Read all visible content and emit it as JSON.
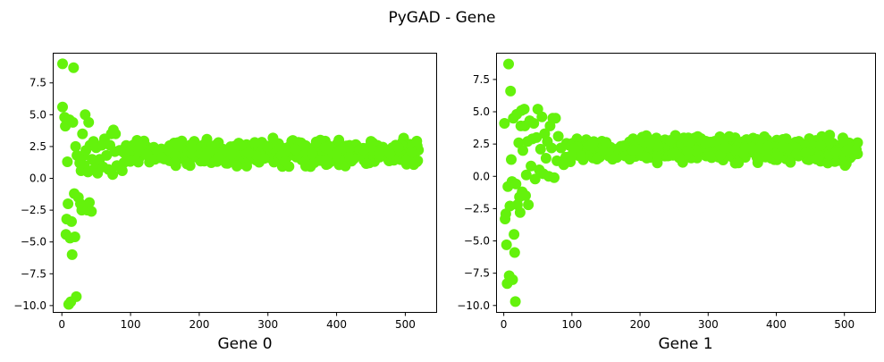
{
  "figure": {
    "title": "PyGAD - Gene",
    "marker_color": "#64F20C"
  },
  "chart_data": [
    {
      "type": "scatter",
      "title": "",
      "xlabel": "Gene 0",
      "ylabel": "",
      "xlim": [
        -12,
        545
      ],
      "ylim": [
        -10.5,
        9.8
      ],
      "x_ticks": [
        0,
        100,
        200,
        300,
        400,
        500
      ],
      "y_ticks": [
        -10.0,
        -7.5,
        -5.0,
        -2.5,
        0.0,
        2.5,
        5.0,
        7.5
      ],
      "x_tick_labels": [
        "0",
        "100",
        "200",
        "300",
        "400",
        "500"
      ],
      "y_tick_labels": [
        "−10.0",
        "−7.5",
        "−5.0",
        "−2.5",
        "0.0",
        "2.5",
        "5.0",
        "7.5"
      ],
      "grid": false,
      "early_points": [
        [
          1,
          9.0
        ],
        [
          1,
          5.6
        ],
        [
          4,
          4.8
        ],
        [
          5,
          4.1
        ],
        [
          6,
          -4.4
        ],
        [
          7,
          -3.2
        ],
        [
          8,
          1.3
        ],
        [
          9,
          -2.0
        ],
        [
          10,
          -9.9
        ],
        [
          11,
          4.6
        ],
        [
          12,
          -4.7
        ],
        [
          13,
          -9.7
        ],
        [
          14,
          -3.4
        ],
        [
          15,
          -6.0
        ],
        [
          16,
          4.4
        ],
        [
          17,
          8.7
        ],
        [
          18,
          -1.2
        ],
        [
          19,
          -4.6
        ],
        [
          20,
          2.5
        ],
        [
          21,
          -9.3
        ],
        [
          22,
          1.8
        ],
        [
          24,
          -1.5
        ],
        [
          26,
          1.2
        ],
        [
          27,
          -2.0
        ],
        [
          28,
          0.6
        ],
        [
          29,
          -2.5
        ],
        [
          30,
          3.5
        ],
        [
          32,
          1.8
        ],
        [
          33,
          1.0
        ],
        [
          34,
          5.0
        ],
        [
          35,
          2.2
        ],
        [
          37,
          -2.5
        ],
        [
          38,
          0.5
        ],
        [
          39,
          4.4
        ],
        [
          40,
          -1.9
        ],
        [
          41,
          2.6
        ],
        [
          43,
          -2.6
        ],
        [
          44,
          1.5
        ],
        [
          46,
          2.9
        ],
        [
          48,
          0.8
        ],
        [
          50,
          2.4
        ],
        [
          52,
          0.4
        ],
        [
          55,
          1.5
        ],
        [
          58,
          2.6
        ],
        [
          60,
          0.9
        ],
        [
          62,
          3.1
        ],
        [
          65,
          1.8
        ],
        [
          68,
          0.7
        ],
        [
          70,
          2.6
        ],
        [
          72,
          3.5
        ],
        [
          74,
          0.3
        ],
        [
          75,
          3.8
        ],
        [
          77,
          2.1
        ],
        [
          78,
          3.5
        ],
        [
          80,
          1.0
        ],
        [
          84,
          2.2
        ],
        [
          88,
          0.6
        ]
      ],
      "band": {
        "x_start": 90,
        "x_end": 520,
        "y_low": 0.7,
        "y_high": 3.4,
        "count": 560,
        "seed": 7
      }
    },
    {
      "type": "scatter",
      "title": "",
      "xlabel": "Gene 1",
      "ylabel": "",
      "xlim": [
        -10,
        545
      ],
      "ylim": [
        -10.5,
        9.5
      ],
      "x_ticks": [
        0,
        100,
        200,
        300,
        400,
        500
      ],
      "y_ticks": [
        -10.0,
        -7.5,
        -5.0,
        -2.5,
        0.0,
        2.5,
        5.0,
        7.5
      ],
      "x_tick_labels": [
        "0",
        "100",
        "200",
        "300",
        "400",
        "500"
      ],
      "y_tick_labels": [
        "−10.0",
        "−7.5",
        "−5.0",
        "−2.5",
        "0.0",
        "2.5",
        "5.0",
        "7.5"
      ],
      "grid": false,
      "early_points": [
        [
          1,
          4.1
        ],
        [
          2,
          -3.3
        ],
        [
          3,
          -2.9
        ],
        [
          4,
          -5.3
        ],
        [
          5,
          -8.3
        ],
        [
          6,
          -0.8
        ],
        [
          7,
          8.7
        ],
        [
          8,
          -7.7
        ],
        [
          9,
          -2.3
        ],
        [
          10,
          6.6
        ],
        [
          11,
          1.3
        ],
        [
          12,
          -0.4
        ],
        [
          13,
          -8.0
        ],
        [
          14,
          4.5
        ],
        [
          15,
          -4.5
        ],
        [
          16,
          -5.9
        ],
        [
          17,
          -9.7
        ],
        [
          18,
          -0.6
        ],
        [
          19,
          4.8
        ],
        [
          20,
          -2.2
        ],
        [
          22,
          2.6
        ],
        [
          23,
          -1.6
        ],
        [
          24,
          -2.8
        ],
        [
          25,
          3.9
        ],
        [
          26,
          5.1
        ],
        [
          27,
          -1.2
        ],
        [
          28,
          2.0
        ],
        [
          30,
          5.2
        ],
        [
          31,
          3.9
        ],
        [
          32,
          -1.5
        ],
        [
          33,
          0.1
        ],
        [
          35,
          2.7
        ],
        [
          36,
          -2.2
        ],
        [
          38,
          4.3
        ],
        [
          40,
          0.8
        ],
        [
          42,
          2.9
        ],
        [
          44,
          4.1
        ],
        [
          46,
          -0.2
        ],
        [
          48,
          3.0
        ],
        [
          50,
          5.2
        ],
        [
          52,
          0.5
        ],
        [
          54,
          2.1
        ],
        [
          56,
          4.6
        ],
        [
          58,
          0.2
        ],
        [
          60,
          3.3
        ],
        [
          62,
          1.4
        ],
        [
          64,
          2.7
        ],
        [
          66,
          0.0
        ],
        [
          68,
          3.9
        ],
        [
          70,
          2.2
        ],
        [
          72,
          4.5
        ],
        [
          74,
          -0.1
        ],
        [
          76,
          4.5
        ],
        [
          78,
          1.2
        ],
        [
          80,
          3.1
        ],
        [
          84,
          2.2
        ],
        [
          88,
          0.9
        ]
      ],
      "band": {
        "x_start": 90,
        "x_end": 520,
        "y_low": 0.8,
        "y_high": 3.4,
        "count": 560,
        "seed": 13
      }
    }
  ]
}
